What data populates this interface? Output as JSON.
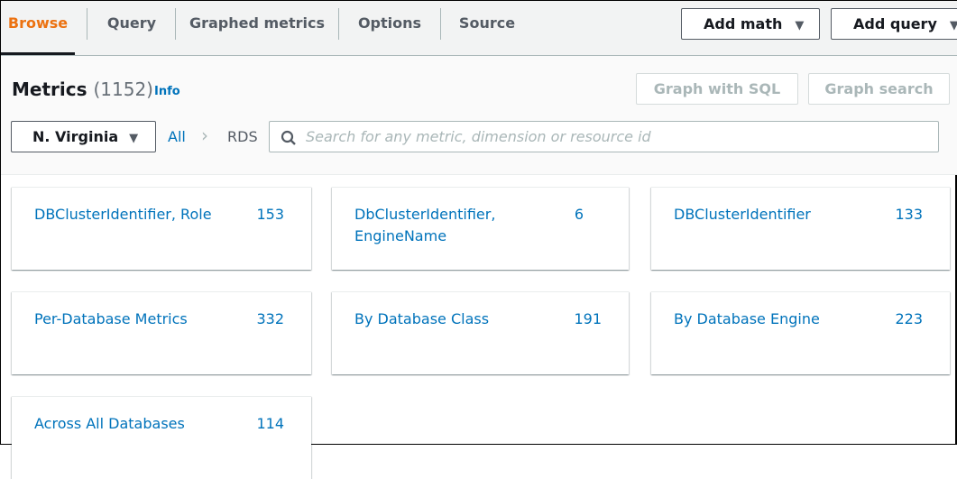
{
  "tabs": [
    {
      "label": "Browse",
      "active": true
    },
    {
      "label": "Query"
    },
    {
      "label": "Graphed metrics"
    },
    {
      "label": "Options"
    },
    {
      "label": "Source"
    }
  ],
  "toolbar": {
    "add_math": "Add math",
    "add_query": "Add query"
  },
  "header": {
    "title": "Metrics",
    "count": "(1152)",
    "info": "Info",
    "graph_sql": "Graph with SQL",
    "graph_search": "Graph search"
  },
  "filter": {
    "region": "N. Virginia",
    "crumb_all": "All",
    "crumb_current": "RDS",
    "search_placeholder": "Search for any metric, dimension or resource id"
  },
  "cards": [
    {
      "name": "DBClusterIdentifier, Role",
      "count": "153"
    },
    {
      "name": "DbClusterIdentifier, EngineName",
      "count": "6"
    },
    {
      "name": "DBClusterIdentifier",
      "count": "133"
    },
    {
      "name": "Per-Database Metrics",
      "count": "332"
    },
    {
      "name": "By Database Class",
      "count": "191"
    },
    {
      "name": "By Database Engine",
      "count": "223"
    },
    {
      "name": "Across All Databases",
      "count": "114"
    }
  ],
  "colors": {
    "accent": "#ec7211",
    "link": "#0073bb"
  }
}
